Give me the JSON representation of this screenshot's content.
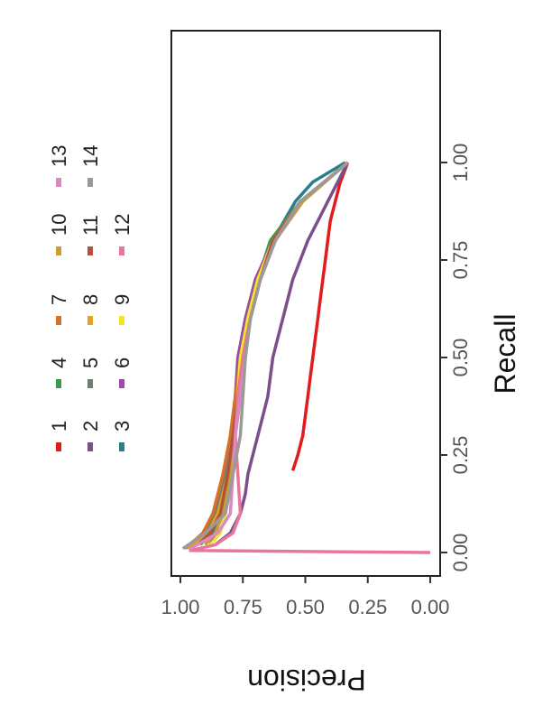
{
  "chart_data": {
    "type": "line",
    "xlabel": "Recall",
    "ylabel": "Precision",
    "xlim": [
      0,
      1
    ],
    "ylim": [
      0,
      1
    ],
    "x_ticks": [
      "0.00",
      "0.25",
      "0.50",
      "0.75",
      "1.00"
    ],
    "y_ticks": [
      "0.00",
      "0.25",
      "0.50",
      "0.75",
      "1.00"
    ],
    "grid": false,
    "legend_position": "right",
    "series": [
      {
        "name": "1",
        "color": "#e41a1c",
        "x": [
          0.21,
          0.25,
          0.3,
          0.35,
          0.4,
          0.45,
          0.5,
          0.55,
          0.6,
          0.65,
          0.7,
          0.75,
          0.8,
          0.85,
          0.9,
          0.95,
          1.0
        ],
        "y": [
          0.55,
          0.53,
          0.51,
          0.5,
          0.49,
          0.48,
          0.47,
          0.46,
          0.45,
          0.44,
          0.43,
          0.42,
          0.41,
          0.4,
          0.38,
          0.36,
          0.33
        ]
      },
      {
        "name": "2",
        "color": "#7a4f8a",
        "x": [
          0.02,
          0.05,
          0.1,
          0.15,
          0.2,
          0.25,
          0.3,
          0.35,
          0.4,
          0.45,
          0.5,
          0.55,
          0.6,
          0.65,
          0.7,
          0.75,
          0.8,
          0.85,
          0.9,
          0.95,
          1.0
        ],
        "y": [
          0.86,
          0.8,
          0.76,
          0.74,
          0.73,
          0.71,
          0.69,
          0.67,
          0.65,
          0.64,
          0.63,
          0.61,
          0.59,
          0.57,
          0.55,
          0.52,
          0.49,
          0.45,
          0.41,
          0.37,
          0.33
        ]
      },
      {
        "name": "3",
        "color": "#2a7f8a",
        "x": [
          0.02,
          0.05,
          0.1,
          0.2,
          0.3,
          0.4,
          0.5,
          0.6,
          0.7,
          0.8,
          0.9,
          0.95,
          1.0
        ],
        "y": [
          0.9,
          0.87,
          0.84,
          0.81,
          0.79,
          0.77,
          0.75,
          0.72,
          0.68,
          0.63,
          0.54,
          0.47,
          0.34
        ]
      },
      {
        "name": "4",
        "color": "#3a9a4a",
        "x": [
          0.02,
          0.05,
          0.1,
          0.2,
          0.3,
          0.4,
          0.5,
          0.6,
          0.7,
          0.8,
          0.9,
          1.0
        ],
        "y": [
          0.92,
          0.88,
          0.85,
          0.82,
          0.8,
          0.78,
          0.76,
          0.73,
          0.69,
          0.64,
          0.52,
          0.33
        ]
      },
      {
        "name": "5",
        "color": "#6f7f6f",
        "x": [
          0.02,
          0.05,
          0.1,
          0.2,
          0.3,
          0.4,
          0.5,
          0.6,
          0.7,
          0.8,
          0.9,
          1.0
        ],
        "y": [
          0.95,
          0.9,
          0.86,
          0.82,
          0.79,
          0.77,
          0.75,
          0.72,
          0.68,
          0.62,
          0.52,
          0.33
        ]
      },
      {
        "name": "6",
        "color": "#984ea3",
        "x": [
          0.02,
          0.05,
          0.1,
          0.2,
          0.3,
          0.4,
          0.5,
          0.6,
          0.7,
          0.8,
          0.9,
          1.0
        ],
        "y": [
          0.88,
          0.86,
          0.83,
          0.81,
          0.79,
          0.78,
          0.77,
          0.74,
          0.7,
          0.63,
          0.52,
          0.33
        ]
      },
      {
        "name": "7",
        "color": "#d9702a",
        "x": [
          0.01,
          0.05,
          0.1,
          0.2,
          0.3,
          0.4,
          0.5,
          0.6,
          0.7,
          0.8,
          0.9,
          1.0
        ],
        "y": [
          0.98,
          0.91,
          0.87,
          0.83,
          0.8,
          0.78,
          0.76,
          0.73,
          0.69,
          0.63,
          0.52,
          0.33
        ]
      },
      {
        "name": "8",
        "color": "#e8a020",
        "x": [
          0.01,
          0.05,
          0.1,
          0.2,
          0.3,
          0.4,
          0.5,
          0.6,
          0.7,
          0.8,
          0.9,
          1.0
        ],
        "y": [
          0.97,
          0.89,
          0.85,
          0.81,
          0.79,
          0.77,
          0.75,
          0.73,
          0.69,
          0.63,
          0.52,
          0.33
        ]
      },
      {
        "name": "9",
        "color": "#f2e52a",
        "x": [
          0.02,
          0.05,
          0.1,
          0.2,
          0.3,
          0.4,
          0.5,
          0.6,
          0.7,
          0.8,
          0.9,
          1.0
        ],
        "y": [
          0.88,
          0.84,
          0.82,
          0.79,
          0.78,
          0.77,
          0.76,
          0.73,
          0.69,
          0.63,
          0.52,
          0.33
        ]
      },
      {
        "name": "10",
        "color": "#c9a030",
        "x": [
          0.02,
          0.05,
          0.1,
          0.2,
          0.3,
          0.4,
          0.5,
          0.6,
          0.7,
          0.8,
          0.9,
          1.0
        ],
        "y": [
          0.9,
          0.86,
          0.83,
          0.8,
          0.78,
          0.76,
          0.74,
          0.72,
          0.68,
          0.62,
          0.51,
          0.33
        ]
      },
      {
        "name": "11",
        "color": "#b0533a",
        "x": [
          0.02,
          0.05,
          0.1,
          0.2,
          0.3,
          0.4,
          0.5,
          0.6,
          0.7,
          0.8,
          0.9,
          1.0
        ],
        "y": [
          0.93,
          0.88,
          0.84,
          0.81,
          0.79,
          0.77,
          0.75,
          0.72,
          0.68,
          0.63,
          0.52,
          0.33
        ]
      },
      {
        "name": "12",
        "color": "#e8769a",
        "x": [
          0.0,
          0.005,
          0.02,
          0.05,
          0.1,
          0.2,
          0.3,
          0.4,
          0.5,
          0.6,
          0.7,
          0.8,
          0.9,
          1.0
        ],
        "y": [
          0.0,
          0.96,
          0.86,
          0.79,
          0.76,
          0.77,
          0.78,
          0.77,
          0.75,
          0.72,
          0.68,
          0.62,
          0.52,
          0.33
        ]
      },
      {
        "name": "13",
        "color": "#d98ac0",
        "x": [
          0.01,
          0.05,
          0.1,
          0.2,
          0.3,
          0.4,
          0.5,
          0.6,
          0.7,
          0.8,
          0.9,
          1.0
        ],
        "y": [
          0.96,
          0.85,
          0.8,
          0.79,
          0.78,
          0.76,
          0.74,
          0.72,
          0.68,
          0.62,
          0.52,
          0.33
        ]
      },
      {
        "name": "14",
        "color": "#9a9a9a",
        "x": [
          0.01,
          0.05,
          0.1,
          0.2,
          0.3,
          0.4,
          0.5,
          0.6,
          0.7,
          0.8,
          0.9,
          1.0
        ],
        "y": [
          0.99,
          0.9,
          0.82,
          0.79,
          0.76,
          0.75,
          0.74,
          0.72,
          0.68,
          0.62,
          0.52,
          0.33
        ]
      }
    ]
  }
}
